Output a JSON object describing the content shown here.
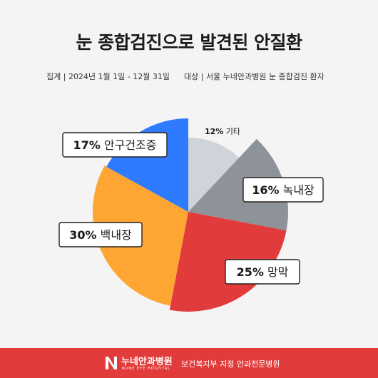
{
  "chart_data": {
    "type": "pie",
    "title": "눈 종합검진으로 발견된 안질환",
    "subtitle_left": "집계 | 2024년 1월 1일 - 12월 31일",
    "subtitle_right": "대상 | 서울 누네안과병원 눈 종합검진 환자",
    "slices": [
      {
        "label": "기타",
        "value": 12,
        "text": "12%",
        "color": "#cfd3da"
      },
      {
        "label": "녹내장",
        "value": 16,
        "text": "16%",
        "color": "#8e9399"
      },
      {
        "label": "망막",
        "value": 25,
        "text": "25%",
        "color": "#e23b3b"
      },
      {
        "label": "백내장",
        "value": 30,
        "text": "30%",
        "color": "#ffa533"
      },
      {
        "label": "안구건조증",
        "value": 17,
        "text": "17%",
        "color": "#2e7bff"
      }
    ]
  },
  "footer": {
    "logo_name": "누네안과병원",
    "logo_sub": "NUNE EYE HOSPITAL",
    "tagline": "보건복지부 지정 안과전문병원"
  }
}
